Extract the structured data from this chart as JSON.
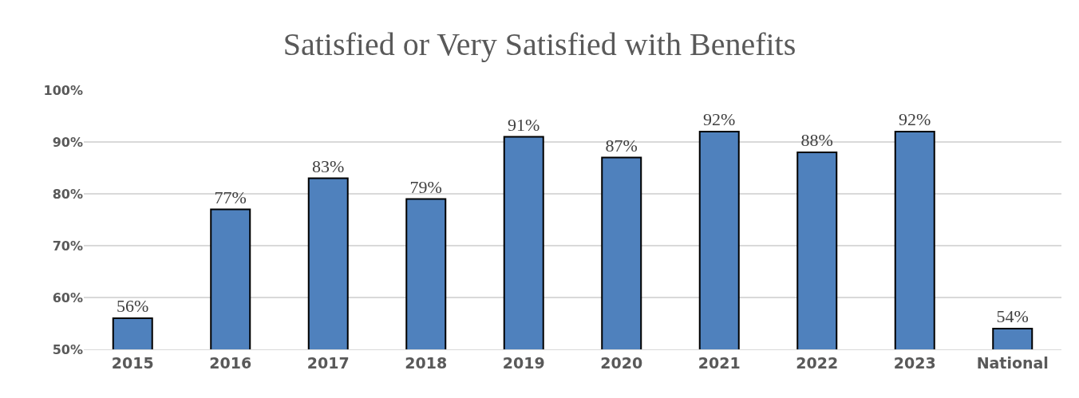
{
  "chart_data": {
    "type": "bar",
    "title": "Satisfied or Very Satisfied with Benefits",
    "categories": [
      "2015",
      "2016",
      "2017",
      "2018",
      "2019",
      "2020",
      "2021",
      "2022",
      "2023",
      "National"
    ],
    "values": [
      56,
      77,
      83,
      79,
      91,
      87,
      92,
      88,
      92,
      54
    ],
    "value_labels": [
      "56%",
      "77%",
      "83%",
      "79%",
      "91%",
      "87%",
      "92%",
      "88%",
      "92%",
      "54%"
    ],
    "color": "#4f81bd",
    "ylim": [
      50,
      100
    ],
    "yticks": [
      {
        "value": 50,
        "label": "50%"
      },
      {
        "value": 60,
        "label": "60%"
      },
      {
        "value": 70,
        "label": "70%"
      },
      {
        "value": 80,
        "label": "80%"
      },
      {
        "value": 90,
        "label": "90%"
      },
      {
        "value": 100,
        "label": "100%"
      }
    ],
    "grid": "y"
  }
}
